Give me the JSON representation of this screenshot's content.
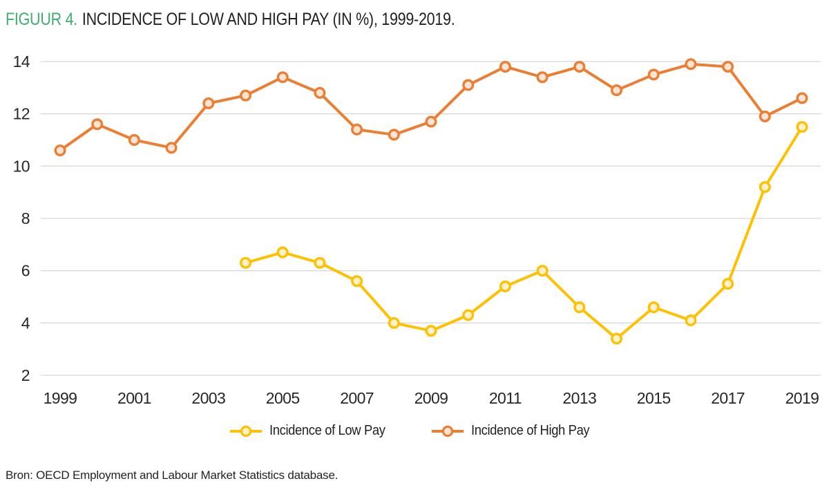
{
  "figure": {
    "label": "FIGUUR 4.",
    "title": "INCIDENCE OF LOW AND HIGH PAY (IN %), 1999-2019.",
    "source": "Bron: OECD Employment and Labour Market Statistics database."
  },
  "colors": {
    "figure_label_green": "#3FAE6E",
    "title_text": "#231F20",
    "grid": "#D8D8D8",
    "tick_text": "#262626",
    "low_pay_line": "#FFC000",
    "low_pay_marker_fill": "#FFF2CC",
    "high_pay_line": "#ED7D31",
    "high_pay_marker_fill": "#FBE5D6"
  },
  "chart_data": {
    "type": "line",
    "title": "FIGUUR 4. INCIDENCE OF LOW AND HIGH PAY (IN %), 1999-2019.",
    "x": [
      1999,
      2000,
      2001,
      2002,
      2003,
      2004,
      2005,
      2006,
      2007,
      2008,
      2009,
      2010,
      2011,
      2012,
      2013,
      2014,
      2015,
      2016,
      2017,
      2018,
      2019
    ],
    "series": [
      {
        "name": "Incidence of Low Pay",
        "color": "#FFC000",
        "marker_fill": "#FFF2CC",
        "values": [
          null,
          null,
          null,
          null,
          null,
          6.3,
          6.7,
          6.3,
          5.6,
          4.0,
          3.7,
          4.3,
          5.4,
          6.0,
          4.6,
          3.4,
          4.6,
          4.1,
          5.5,
          9.2,
          11.5
        ]
      },
      {
        "name": "Incidence of High Pay",
        "color": "#ED7D31",
        "marker_fill": "#FBE5D6",
        "values": [
          10.6,
          11.6,
          11.0,
          10.7,
          12.4,
          12.7,
          13.4,
          12.8,
          11.4,
          11.2,
          11.7,
          13.1,
          13.8,
          13.4,
          13.8,
          12.9,
          13.5,
          13.9,
          13.8,
          11.9,
          12.6
        ]
      }
    ],
    "xlabel": "",
    "ylabel": "",
    "ylim": [
      2,
      14
    ],
    "yticks": [
      2,
      4,
      6,
      8,
      10,
      12,
      14
    ],
    "xtick_step": 2,
    "grid": "horizontal",
    "legend_position": "bottom"
  }
}
